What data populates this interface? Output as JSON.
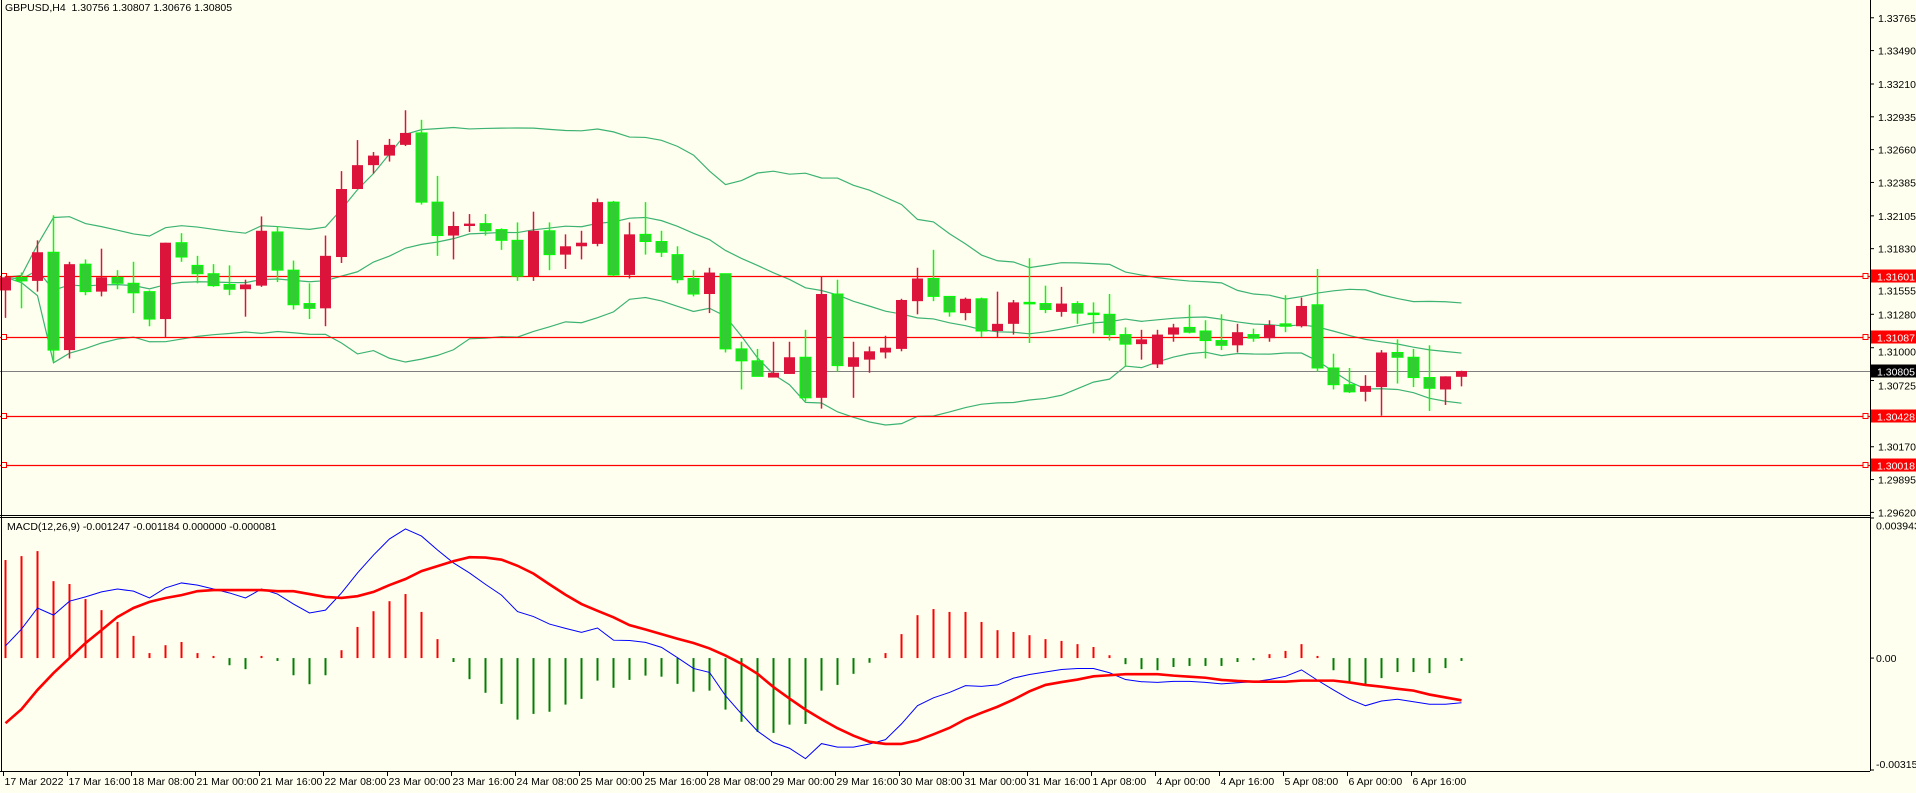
{
  "header": {
    "title": "GBPUSD,H4  1.30756 1.30807 1.30676 1.30805"
  },
  "macd_header": {
    "title": "MACD(12,26,9) -0.001247 -0.001184 0.000000 -0.000081"
  },
  "colors": {
    "background": "#FFFFF0",
    "bull": "#DC143C",
    "bear_body": "#32CD32",
    "bear_wick": "#00FF00",
    "bands": "#3CB371",
    "level": "#FF0000",
    "current": "#808080",
    "macd_main": "#0000FF",
    "macd_signal": "#FF0000",
    "hist_pos": "#FF0000",
    "hist_neg": "#008000"
  },
  "chart_data": [
    {
      "type": "candlestick",
      "symbol": "GBPUSD",
      "timeframe": "H4",
      "ylim": [
        1.29598,
        1.33914
      ],
      "price_ticks": [
        "1.33765",
        "1.33490",
        "1.33210",
        "1.32935",
        "1.32660",
        "1.32385",
        "1.32105",
        "1.31830",
        "1.31555",
        "1.31280",
        "1.31000",
        "1.30725",
        "1.30170",
        "1.29895",
        "1.29620"
      ],
      "levels": [
        "1.31601",
        "1.31087",
        "1.30428",
        "1.30018"
      ],
      "current_price": "1.30805",
      "bollinger": {
        "period": 20,
        "deviation": 2
      },
      "time_labels": [
        {
          "bar": 0,
          "label": "17 Mar 2022"
        },
        {
          "bar": 4,
          "label": "17 Mar 16:00"
        },
        {
          "bar": 8,
          "label": "18 Mar 08:00"
        },
        {
          "bar": 12,
          "label": "21 Mar 00:00"
        },
        {
          "bar": 16,
          "label": "21 Mar 16:00"
        },
        {
          "bar": 20,
          "label": "22 Mar 08:00"
        },
        {
          "bar": 24,
          "label": "23 Mar 00:00"
        },
        {
          "bar": 28,
          "label": "23 Mar 16:00"
        },
        {
          "bar": 32,
          "label": "24 Mar 08:00"
        },
        {
          "bar": 36,
          "label": "25 Mar 00:00"
        },
        {
          "bar": 40,
          "label": "25 Mar 16:00"
        },
        {
          "bar": 44,
          "label": "28 Mar 08:00"
        },
        {
          "bar": 48,
          "label": "29 Mar 00:00"
        },
        {
          "bar": 52,
          "label": "29 Mar 16:00"
        },
        {
          "bar": 56,
          "label": "30 Mar 08:00"
        },
        {
          "bar": 60,
          "label": "31 Mar 00:00"
        },
        {
          "bar": 64,
          "label": "31 Mar 16:00"
        },
        {
          "bar": 68,
          "label": "1 Apr 08:00"
        },
        {
          "bar": 72,
          "label": "4 Apr 00:00"
        },
        {
          "bar": 76,
          "label": "4 Apr 16:00"
        },
        {
          "bar": 80,
          "label": "5 Apr 08:00"
        },
        {
          "bar": 84,
          "label": "6 Apr 00:00"
        },
        {
          "bar": 88,
          "label": "6 Apr 16:00"
        }
      ],
      "ohlc": [
        [
          1.3148,
          1.316,
          1.3125,
          1.3159
        ],
        [
          1.3159,
          1.3163,
          1.3133,
          1.3156
        ],
        [
          1.3156,
          1.319,
          1.3147,
          1.318
        ],
        [
          1.318,
          1.3211,
          1.3088,
          1.3098
        ],
        [
          1.3098,
          1.3172,
          1.3091,
          1.317
        ],
        [
          1.317,
          1.3174,
          1.3144,
          1.3147
        ],
        [
          1.3147,
          1.3183,
          1.3143,
          1.3159
        ],
        [
          1.3159,
          1.3165,
          1.3149,
          1.3154
        ],
        [
          1.3154,
          1.3172,
          1.3129,
          1.3146
        ],
        [
          1.3147,
          1.3148,
          1.3118,
          1.3124
        ],
        [
          1.3124,
          1.3188,
          1.3109,
          1.3188
        ],
        [
          1.3188,
          1.3196,
          1.3172,
          1.3176
        ],
        [
          1.3169,
          1.3177,
          1.3154,
          1.3162
        ],
        [
          1.3162,
          1.317,
          1.3151,
          1.3152
        ],
        [
          1.3153,
          1.3169,
          1.3144,
          1.3149
        ],
        [
          1.3149,
          1.3157,
          1.3126,
          1.3153
        ],
        [
          1.3152,
          1.321,
          1.3151,
          1.3198
        ],
        [
          1.3197,
          1.3202,
          1.3155,
          1.3165
        ],
        [
          1.3165,
          1.3173,
          1.3132,
          1.3136
        ],
        [
          1.3137,
          1.3154,
          1.3124,
          1.3133
        ],
        [
          1.3133,
          1.3194,
          1.3118,
          1.3177
        ],
        [
          1.3176,
          1.3248,
          1.3171,
          1.3233
        ],
        [
          1.3233,
          1.3274,
          1.3233,
          1.3253
        ],
        [
          1.3253,
          1.3264,
          1.3246,
          1.3261
        ],
        [
          1.3261,
          1.3275,
          1.3256,
          1.327
        ],
        [
          1.327,
          1.3299,
          1.3269,
          1.328
        ],
        [
          1.328,
          1.3291,
          1.322,
          1.3222
        ],
        [
          1.3222,
          1.3244,
          1.3177,
          1.3194
        ],
        [
          1.3194,
          1.3214,
          1.3174,
          1.3202
        ],
        [
          1.3202,
          1.3212,
          1.3197,
          1.3204
        ],
        [
          1.3204,
          1.3212,
          1.3194,
          1.3198
        ],
        [
          1.3199,
          1.32,
          1.3182,
          1.319
        ],
        [
          1.319,
          1.3205,
          1.3156,
          1.316
        ],
        [
          1.316,
          1.3214,
          1.3156,
          1.3198
        ],
        [
          1.3198,
          1.3205,
          1.3165,
          1.3178
        ],
        [
          1.3178,
          1.3195,
          1.3166,
          1.3185
        ],
        [
          1.3185,
          1.3198,
          1.3174,
          1.3188
        ],
        [
          1.3187,
          1.3225,
          1.3185,
          1.3222
        ],
        [
          1.3222,
          1.3223,
          1.316,
          1.3161
        ],
        [
          1.3161,
          1.3205,
          1.3158,
          1.3195
        ],
        [
          1.3195,
          1.3222,
          1.3178,
          1.3189
        ],
        [
          1.3189,
          1.3198,
          1.3176,
          1.318
        ],
        [
          1.3178,
          1.3185,
          1.3154,
          1.3157
        ],
        [
          1.3158,
          1.3165,
          1.3143,
          1.3145
        ],
        [
          1.3145,
          1.3167,
          1.3129,
          1.3163
        ],
        [
          1.3162,
          1.3162,
          1.3096,
          1.3099
        ],
        [
          1.3099,
          1.3105,
          1.3065,
          1.3089
        ],
        [
          1.3089,
          1.3099,
          1.3076,
          1.3076
        ],
        [
          1.3075,
          1.3105,
          1.3075,
          1.3079
        ],
        [
          1.3078,
          1.3105,
          1.3078,
          1.3092
        ],
        [
          1.3092,
          1.3115,
          1.3055,
          1.3058
        ],
        [
          1.3058,
          1.316,
          1.3049,
          1.3145
        ],
        [
          1.3145,
          1.3157,
          1.308,
          1.3085
        ],
        [
          1.3084,
          1.3105,
          1.3058,
          1.3092
        ],
        [
          1.309,
          1.3101,
          1.3079,
          1.3097
        ],
        [
          1.3096,
          1.311,
          1.3091,
          1.31
        ],
        [
          1.3099,
          1.3141,
          1.3097,
          1.314
        ],
        [
          1.3139,
          1.3167,
          1.3128,
          1.3158
        ],
        [
          1.3158,
          1.3182,
          1.3139,
          1.3143
        ],
        [
          1.3143,
          1.3143,
          1.3126,
          1.313
        ],
        [
          1.3129,
          1.3142,
          1.3123,
          1.3141
        ],
        [
          1.3141,
          1.3142,
          1.3109,
          1.3114
        ],
        [
          1.3114,
          1.3147,
          1.3109,
          1.312
        ],
        [
          1.312,
          1.314,
          1.3111,
          1.3138
        ],
        [
          1.3138,
          1.3175,
          1.3104,
          1.3137
        ],
        [
          1.3137,
          1.3152,
          1.3129,
          1.3132
        ],
        [
          1.313,
          1.3151,
          1.3126,
          1.3137
        ],
        [
          1.3137,
          1.3139,
          1.312,
          1.3129
        ],
        [
          1.3129,
          1.3138,
          1.3112,
          1.3128
        ],
        [
          1.3128,
          1.3145,
          1.3106,
          1.3111
        ],
        [
          1.3111,
          1.3117,
          1.3084,
          1.3103
        ],
        [
          1.3103,
          1.3115,
          1.309,
          1.3107
        ],
        [
          1.3086,
          1.3115,
          1.3083,
          1.3111
        ],
        [
          1.3111,
          1.312,
          1.3105,
          1.3117
        ],
        [
          1.3117,
          1.3136,
          1.3112,
          1.3113
        ],
        [
          1.3114,
          1.3123,
          1.3091,
          1.3106
        ],
        [
          1.3106,
          1.3128,
          1.3098,
          1.3102
        ],
        [
          1.3102,
          1.312,
          1.3096,
          1.3113
        ],
        [
          1.3111,
          1.3116,
          1.3105,
          1.3108
        ],
        [
          1.3108,
          1.3123,
          1.3105,
          1.3119
        ],
        [
          1.312,
          1.3144,
          1.3113,
          1.3118
        ],
        [
          1.3118,
          1.3142,
          1.3117,
          1.3135
        ],
        [
          1.3136,
          1.3166,
          1.308,
          1.3083
        ],
        [
          1.3083,
          1.3095,
          1.3065,
          1.3069
        ],
        [
          1.3069,
          1.3083,
          1.3062,
          1.3063
        ],
        [
          1.3063,
          1.3077,
          1.3055,
          1.3068
        ],
        [
          1.3067,
          1.3098,
          1.3043,
          1.3096
        ],
        [
          1.3096,
          1.3107,
          1.307,
          1.3092
        ],
        [
          1.3092,
          1.3099,
          1.3067,
          1.3075
        ],
        [
          1.3075,
          1.3102,
          1.3047,
          1.3066
        ],
        [
          1.3065,
          1.3076,
          1.3052,
          1.3076
        ],
        [
          1.30756,
          1.30807,
          1.30676,
          1.30805
        ]
      ]
    },
    {
      "type": "line",
      "title": "MACD(12,26,9)",
      "unit": 0.001,
      "ylim": [
        -0.003156,
        0.003943
      ],
      "axis_labels": [
        "0.003943",
        "0.00",
        "-0.003156"
      ],
      "histogram": [
        2.74,
        2.85,
        2.99,
        2.15,
        2.07,
        1.65,
        1.34,
        1.01,
        0.62,
        0.14,
        0.36,
        0.45,
        0.14,
        0.06,
        -0.2,
        -0.31,
        0.06,
        -0.08,
        -0.48,
        -0.73,
        -0.48,
        0.22,
        0.87,
        1.31,
        1.59,
        1.79,
        1.29,
        0.53,
        -0.11,
        -0.59,
        -0.97,
        -1.28,
        -1.72,
        -1.56,
        -1.5,
        -1.3,
        -1.14,
        -0.63,
        -0.83,
        -0.61,
        -0.49,
        -0.52,
        -0.72,
        -0.94,
        -0.91,
        -1.44,
        -1.78,
        -2.06,
        -2.09,
        -1.86,
        -1.84,
        -0.91,
        -0.75,
        -0.44,
        -0.13,
        0.14,
        0.67,
        1.2,
        1.37,
        1.29,
        1.29,
        1.01,
        0.78,
        0.73,
        0.64,
        0.53,
        0.48,
        0.39,
        0.31,
        0.08,
        -0.17,
        -0.31,
        -0.34,
        -0.25,
        -0.22,
        -0.22,
        -0.22,
        -0.11,
        -0.06,
        0.11,
        0.2,
        0.39,
        0.06,
        -0.34,
        -0.67,
        -0.77,
        -0.56,
        -0.39,
        -0.39,
        -0.42,
        -0.28,
        -0.08
      ],
      "main": [
        0.34,
        0.81,
        1.4,
        1.2,
        1.59,
        1.71,
        1.85,
        1.93,
        1.87,
        1.68,
        1.96,
        2.1,
        2.04,
        1.93,
        1.82,
        1.68,
        1.93,
        1.79,
        1.51,
        1.26,
        1.34,
        1.82,
        2.38,
        2.88,
        3.33,
        3.61,
        3.41,
        3.02,
        2.66,
        2.38,
        2.06,
        1.76,
        1.3,
        1.16,
        0.95,
        0.83,
        0.72,
        0.84,
        0.5,
        0.49,
        0.44,
        0.3,
        0.01,
        -0.29,
        -0.4,
        -1.05,
        -1.56,
        -2.04,
        -2.36,
        -2.52,
        -2.81,
        -2.39,
        -2.49,
        -2.49,
        -2.4,
        -2.28,
        -1.84,
        -1.33,
        -1.11,
        -0.96,
        -0.77,
        -0.79,
        -0.75,
        -0.56,
        -0.46,
        -0.39,
        -0.32,
        -0.29,
        -0.29,
        -0.41,
        -0.6,
        -0.66,
        -0.68,
        -0.65,
        -0.65,
        -0.68,
        -0.72,
        -0.69,
        -0.66,
        -0.6,
        -0.51,
        -0.33,
        -0.62,
        -0.89,
        -1.15,
        -1.33,
        -1.2,
        -1.15,
        -1.22,
        -1.29,
        -1.29,
        -1.25
      ],
      "signal": [
        -1.82,
        -1.43,
        -0.89,
        -0.42,
        0,
        0.42,
        0.78,
        1.15,
        1.4,
        1.57,
        1.68,
        1.76,
        1.87,
        1.9,
        1.9,
        1.9,
        1.9,
        1.87,
        1.87,
        1.79,
        1.71,
        1.68,
        1.73,
        1.85,
        2.04,
        2.21,
        2.43,
        2.57,
        2.71,
        2.82,
        2.81,
        2.75,
        2.58,
        2.36,
        2.06,
        1.77,
        1.51,
        1.32,
        1.14,
        0.92,
        0.8,
        0.67,
        0.54,
        0.42,
        0.27,
        0.07,
        -0.16,
        -0.44,
        -0.81,
        -1.13,
        -1.44,
        -1.71,
        -1.96,
        -2.17,
        -2.34,
        -2.4,
        -2.4,
        -2.3,
        -2.13,
        -1.95,
        -1.71,
        -1.53,
        -1.36,
        -1.16,
        -0.93,
        -0.75,
        -0.67,
        -0.6,
        -0.51,
        -0.48,
        -0.45,
        -0.45,
        -0.45,
        -0.49,
        -0.52,
        -0.55,
        -0.61,
        -0.64,
        -0.66,
        -0.66,
        -0.66,
        -0.63,
        -0.63,
        -0.63,
        -0.68,
        -0.75,
        -0.8,
        -0.86,
        -0.91,
        -1.02,
        -1.1,
        -1.18
      ]
    }
  ]
}
